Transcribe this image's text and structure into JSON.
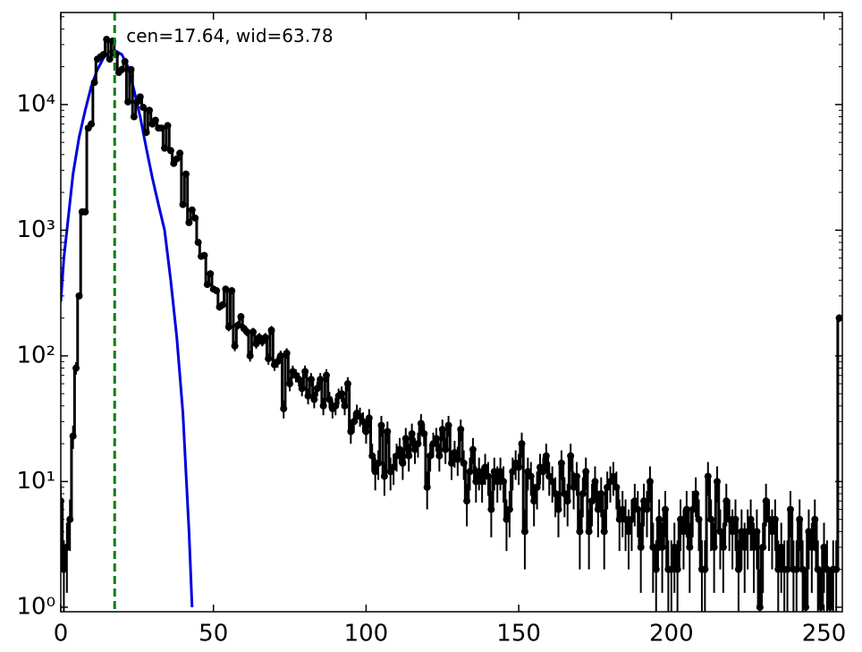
{
  "chart_data": {
    "type": "line",
    "log_y": true,
    "annotation": "cen=17.64, wid=63.78",
    "annotation_color": "#008000",
    "vline": {
      "x": 17.64,
      "color": "#008000"
    },
    "xlim": [
      0,
      256
    ],
    "ylim": [
      0.92,
      54000
    ],
    "xticks": [
      0,
      50,
      100,
      150,
      200,
      250
    ],
    "yticks": [
      {
        "value": 1,
        "label": "10⁰"
      },
      {
        "value": 10,
        "label": "10¹"
      },
      {
        "value": 100,
        "label": "10²"
      },
      {
        "value": 1000,
        "label": "10³"
      },
      {
        "value": 10000,
        "label": "10⁴"
      }
    ],
    "yticks_minor": [
      2,
      3,
      4,
      5,
      6,
      7,
      8,
      9,
      20,
      30,
      40,
      50,
      60,
      70,
      80,
      90,
      200,
      300,
      400,
      500,
      600,
      700,
      800,
      900,
      2000,
      3000,
      4000,
      5000,
      6000,
      7000,
      8000,
      9000,
      20000,
      30000,
      40000,
      50000
    ],
    "fit": {
      "color": "#0000dd",
      "x": [
        0,
        1,
        2,
        4,
        6,
        8,
        10,
        12,
        14,
        16,
        17.64,
        20,
        22,
        24,
        26,
        28,
        30,
        32,
        34,
        36,
        38,
        40,
        42,
        43
      ],
      "values": [
        270,
        600,
        1000,
        2800,
        5500,
        9000,
        14000,
        19000,
        23500,
        26500,
        27000,
        25000,
        20000,
        13000,
        8000,
        4500,
        2600,
        1600,
        1000,
        400,
        140,
        35,
        4,
        1
      ]
    },
    "series": [
      {
        "color": "#000000",
        "x": [
          0,
          1,
          2,
          3,
          4,
          5,
          6,
          7,
          8,
          9,
          10,
          11,
          12,
          13,
          14,
          15,
          16,
          17,
          18,
          19,
          20,
          21,
          22,
          23,
          24,
          25,
          26,
          27,
          28,
          29,
          30,
          31,
          32,
          33,
          34,
          35,
          36,
          37,
          38,
          39,
          40,
          41,
          42,
          43,
          44,
          45,
          46,
          47,
          48,
          49,
          50,
          51,
          52,
          53,
          54,
          55,
          56,
          57,
          58,
          59,
          60,
          61,
          62,
          63,
          64,
          65,
          66,
          67,
          68,
          69,
          70,
          71,
          72,
          73,
          74,
          75,
          76,
          77,
          78,
          79,
          80,
          81,
          82,
          83,
          84,
          85,
          86,
          87,
          88,
          89,
          90,
          91,
          92,
          93,
          94,
          95,
          96,
          97,
          98,
          99,
          100,
          101,
          102,
          103,
          104,
          105,
          106,
          107,
          108,
          109,
          110,
          111,
          112,
          113,
          114,
          115,
          116,
          117,
          118,
          119,
          120,
          121,
          122,
          123,
          124,
          125,
          126,
          127,
          128,
          129,
          130,
          131,
          132,
          133,
          134,
          135,
          136,
          137,
          138,
          139,
          140,
          141,
          142,
          143,
          144,
          145,
          146,
          147,
          148,
          149,
          150,
          151,
          152,
          153,
          154,
          155,
          156,
          157,
          158,
          159,
          160,
          161,
          162,
          163,
          164,
          165,
          166,
          167,
          168,
          169,
          170,
          171,
          172,
          173,
          174,
          175,
          176,
          177,
          178,
          179,
          180,
          181,
          182,
          183,
          184,
          185,
          186,
          187,
          188,
          189,
          190,
          191,
          192,
          193,
          194,
          195,
          196,
          197,
          198,
          199,
          200,
          201,
          202,
          203,
          204,
          205,
          206,
          207,
          208,
          209,
          210,
          211,
          212,
          213,
          214,
          215,
          216,
          217,
          218,
          219,
          220,
          221,
          222,
          223,
          224,
          225,
          226,
          227,
          228,
          229,
          230,
          231,
          232,
          233,
          234,
          235,
          236,
          237,
          238,
          239,
          240,
          241,
          242,
          243,
          244,
          245,
          246,
          247,
          248,
          249,
          250,
          251,
          252,
          253,
          254,
          255
        ],
        "values": [
          7,
          2,
          3,
          5,
          23,
          80,
          300,
          1400,
          1400,
          6500,
          7000,
          15000,
          23000,
          24000,
          25000,
          33000,
          23000,
          32000,
          25000,
          18000,
          19000,
          22000,
          10500,
          19000,
          8000,
          10500,
          11500,
          9500,
          6000,
          9000,
          7000,
          7500,
          6500,
          6500,
          4500,
          6800,
          4300,
          3400,
          3700,
          4100,
          1600,
          2800,
          1150,
          1450,
          1250,
          800,
          620,
          630,
          370,
          450,
          340,
          330,
          245,
          255,
          340,
          170,
          330,
          120,
          175,
          205,
          165,
          155,
          100,
          155,
          125,
          140,
          130,
          140,
          95,
          160,
          85,
          90,
          100,
          38,
          105,
          60,
          75,
          70,
          65,
          55,
          75,
          48,
          65,
          45,
          55,
          65,
          40,
          70,
          45,
          38,
          40,
          48,
          50,
          40,
          60,
          25,
          30,
          35,
          33,
          30,
          25,
          32,
          16,
          12,
          14,
          28,
          11,
          25,
          12,
          13,
          16,
          18,
          14,
          22,
          16,
          24,
          18,
          20,
          29,
          24,
          9,
          16,
          20,
          22,
          16,
          26,
          18,
          28,
          14,
          17,
          15,
          26,
          14,
          7,
          12,
          18,
          10,
          12,
          10,
          13,
          11,
          6,
          12,
          10,
          12,
          10,
          5,
          6,
          12,
          14,
          13,
          20,
          4,
          12,
          11,
          7,
          9,
          13,
          12,
          16,
          11,
          10,
          8,
          6,
          14,
          8,
          7,
          16,
          9,
          11,
          4,
          8,
          12,
          4,
          7,
          10,
          6,
          8,
          4,
          9,
          10,
          11,
          9,
          5,
          6,
          5,
          4,
          5,
          7,
          6,
          3,
          7,
          6,
          10,
          3,
          2,
          5,
          3,
          6,
          2,
          2,
          3,
          2,
          5,
          4,
          6,
          3,
          6,
          8,
          5,
          2,
          2,
          11,
          5,
          3,
          10,
          4,
          3,
          7,
          5,
          4,
          5,
          2,
          4,
          3,
          4,
          5,
          3,
          4,
          1,
          3,
          7,
          5,
          4,
          5,
          2,
          3,
          2,
          2,
          6,
          2,
          2,
          5,
          2,
          1,
          4,
          3,
          5,
          2,
          1,
          3,
          2,
          1,
          2,
          2,
          200
        ],
        "errors": [
          2.6,
          1.4,
          1.7,
          2.2,
          4.8,
          9,
          17,
          37,
          37,
          81,
          84,
          122,
          152,
          155,
          158,
          182,
          152,
          179,
          158,
          134,
          138,
          148,
          102,
          138,
          89,
          102,
          107,
          97,
          77,
          95,
          84,
          87,
          81,
          81,
          67,
          82,
          66,
          58,
          61,
          64,
          40,
          53,
          34,
          38,
          35,
          28,
          25,
          25,
          19,
          21,
          18,
          18,
          16,
          16,
          18,
          13,
          18,
          11,
          13,
          14,
          13,
          12,
          10,
          12,
          11,
          12,
          11,
          12,
          10,
          13,
          9,
          9.5,
          10,
          6.2,
          10,
          7.7,
          8.7,
          8.4,
          8,
          7.4,
          8.7,
          6.9,
          8,
          6.7,
          7.4,
          8,
          6.3,
          8.4,
          6.7,
          6.2,
          6.3,
          6.9,
          7.1,
          6.3,
          7.7,
          5,
          5.5,
          5.9,
          5.7,
          5.5,
          5,
          5.7,
          4,
          3.5,
          3.7,
          5.3,
          3.3,
          5,
          3.5,
          3.6,
          4,
          4.2,
          3.7,
          4.7,
          4,
          4.9,
          4.2,
          4.5,
          5.4,
          4.9,
          3,
          4,
          4.5,
          4.7,
          4,
          5.1,
          4.2,
          5.3,
          3.7,
          4.1,
          3.9,
          5.1,
          3.7,
          2.6,
          3.5,
          4.2,
          3.2,
          3.5,
          3.2,
          3.6,
          3.3,
          2.4,
          3.5,
          3.2,
          3.5,
          3.2,
          2.2,
          2.4,
          3.5,
          3.7,
          3.6,
          4.5,
          2,
          3.5,
          3.3,
          2.6,
          3,
          3.6,
          3.5,
          4,
          3.3,
          3.2,
          2.8,
          2.4,
          3.7,
          2.8,
          2.6,
          4,
          3,
          3.3,
          2,
          2.8,
          3.5,
          2,
          2.6,
          3.2,
          2.4,
          2.8,
          2,
          3,
          3.2,
          3.3,
          3,
          2.2,
          2.4,
          2.2,
          2,
          2.2,
          2.6,
          2.4,
          1.7,
          2.6,
          2.4,
          3.2,
          1.7,
          1.4,
          2.2,
          1.7,
          2.4,
          1.4,
          1.4,
          1.7,
          1.4,
          2.2,
          2,
          2.4,
          1.7,
          2.4,
          2.8,
          2.2,
          1.4,
          1.4,
          3.3,
          2.2,
          1.7,
          3.2,
          2,
          1.7,
          2.6,
          2.2,
          2,
          2.2,
          1.4,
          2,
          1.7,
          2,
          2.2,
          1.7,
          2,
          1,
          1.7,
          2.6,
          2.2,
          2,
          2.2,
          1.4,
          1.7,
          1.4,
          1.4,
          2.4,
          1.4,
          1.4,
          2.2,
          1.4,
          1,
          2,
          1.7,
          2.2,
          1.4,
          1,
          1.7,
          1.4,
          1,
          1.4,
          1.4,
          14
        ]
      }
    ]
  }
}
